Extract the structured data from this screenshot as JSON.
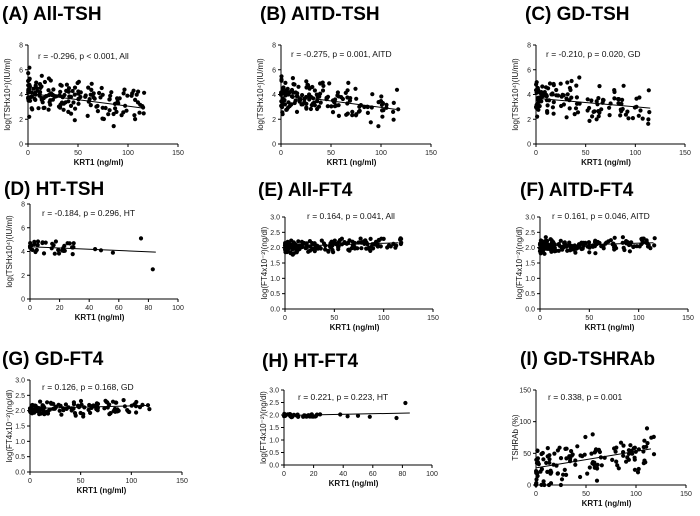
{
  "chart_data": [
    {
      "type": "scatter",
      "title": "(A) All-TSH",
      "annotation": "r = -0.296, p < 0.001, All",
      "xlabel": "KRT1 (ng/ml)",
      "ylabel": "log(TSHx10⁴)(IU/ml)",
      "xlim": [
        0,
        150
      ],
      "ylim": [
        0,
        8
      ],
      "xticks": [
        0,
        50,
        100,
        150
      ],
      "yticks": [
        0,
        2,
        4,
        6,
        8
      ],
      "regression": {
        "x": [
          0,
          115
        ],
        "y": [
          4.1,
          2.9
        ]
      },
      "seed": 11,
      "n": 170,
      "x_max": 118,
      "mean": 3.6,
      "spread": 1.1,
      "y_range": [
        0.6,
        6.3
      ]
    },
    {
      "type": "scatter",
      "title": "(B) AITD-TSH",
      "annotation": "r = -0.275, p = 0.001, AITD",
      "xlabel": "KRT1 (ng/ml)",
      "ylabel": "log(TSHx10⁴)(IU/ml)",
      "xlim": [
        0,
        150
      ],
      "ylim": [
        0,
        8
      ],
      "xticks": [
        0,
        50,
        100,
        150
      ],
      "yticks": [
        0,
        2,
        4,
        6,
        8
      ],
      "regression": {
        "x": [
          0,
          115
        ],
        "y": [
          4.0,
          2.8
        ]
      },
      "seed": 23,
      "n": 160,
      "x_max": 118,
      "mean": 3.5,
      "spread": 1.1,
      "y_range": [
        0.6,
        6.2
      ]
    },
    {
      "type": "scatter",
      "title": "(C) GD-TSH",
      "annotation": "r = -0.210, p = 0.020, GD",
      "xlabel": "KRT1 (ng/ml)",
      "ylabel": "log(TSHx10⁴)(IU/ml)",
      "xlim": [
        0,
        150
      ],
      "ylim": [
        0,
        8
      ],
      "xticks": [
        0,
        50,
        100,
        150
      ],
      "yticks": [
        0,
        2,
        4,
        6,
        8
      ],
      "regression": {
        "x": [
          0,
          115
        ],
        "y": [
          3.7,
          2.9
        ]
      },
      "seed": 37,
      "n": 130,
      "x_max": 118,
      "mean": 3.3,
      "spread": 1.1,
      "y_range": [
        0.6,
        5.8
      ]
    },
    {
      "type": "scatter",
      "title": "(D) HT-TSH",
      "annotation": "r = -0.184, p = 0.296, HT",
      "xlabel": "KRT1 (ng/ml)",
      "ylabel": "log(TSHx10⁴)(IU/ml)",
      "xlim": [
        0,
        100
      ],
      "ylim": [
        0,
        8
      ],
      "xticks": [
        0,
        20,
        40,
        60,
        80,
        100
      ],
      "yticks": [
        0,
        2,
        4,
        6,
        8
      ],
      "regression": {
        "x": [
          0,
          85
        ],
        "y": [
          4.4,
          3.95
        ]
      },
      "seed": 41,
      "n": 35,
      "x_max": 30,
      "mean": 4.4,
      "spread": 0.45,
      "y_range": [
        2.4,
        5.3
      ],
      "extra_points": [
        [
          44,
          4.2
        ],
        [
          48,
          4.1
        ],
        [
          56,
          3.9
        ],
        [
          75,
          5.1
        ],
        [
          83,
          2.5
        ]
      ]
    },
    {
      "type": "scatter",
      "title": "(E) All-FT4",
      "annotation": "r = 0.164, p = 0.041, All",
      "xlabel": "KRT1 (ng/ml)",
      "ylabel": "log(FT4x10⁻²)(ng/dl)",
      "xlim": [
        0,
        150
      ],
      "ylim": [
        0,
        3.0
      ],
      "xticks": [
        0,
        50,
        100,
        150
      ],
      "yticks": [
        "0.0",
        "0.5",
        "1.0",
        "1.5",
        "2.0",
        "2.5",
        "3.0"
      ],
      "regression": {
        "x": [
          0,
          115
        ],
        "y": [
          2.04,
          2.16
        ]
      },
      "seed": 53,
      "n": 165,
      "x_max": 118,
      "mean": 2.07,
      "spread": 0.17,
      "y_range": [
        1.3,
        2.95
      ]
    },
    {
      "type": "scatter",
      "title": "(F) AITD-FT4",
      "annotation": "r = 0.161,  p = 0.046, AITD",
      "xlabel": "KRT1 (ng/ml)",
      "ylabel": "log(FT4x10⁻²)(ng/dl)",
      "xlim": [
        0,
        150
      ],
      "ylim": [
        0,
        3.0
      ],
      "xticks": [
        0,
        50,
        100,
        150
      ],
      "yticks": [
        "0.0",
        "0.5",
        "1.0",
        "1.5",
        "2.0",
        "2.5",
        "3.0"
      ],
      "regression": {
        "x": [
          0,
          115
        ],
        "y": [
          2.05,
          2.16
        ]
      },
      "seed": 67,
      "n": 160,
      "x_max": 118,
      "mean": 2.08,
      "spread": 0.17,
      "y_range": [
        1.3,
        2.9
      ]
    },
    {
      "type": "scatter",
      "title": "(G) GD-FT4",
      "annotation": "r = 0.126, p = 0.168, GD",
      "xlabel": "KRT1 (ng/ml)",
      "ylabel": "log(FT4x10⁻²)(ng/dl)",
      "xlim": [
        0,
        150
      ],
      "ylim": [
        0,
        3.0
      ],
      "xticks": [
        0,
        50,
        100,
        150
      ],
      "yticks": [
        "0.0",
        "0.5",
        "1.0",
        "1.5",
        "2.0",
        "2.5",
        "3.0"
      ],
      "regression": {
        "x": [
          0,
          115
        ],
        "y": [
          2.07,
          2.17
        ]
      },
      "seed": 79,
      "n": 125,
      "x_max": 118,
      "mean": 2.1,
      "spread": 0.18,
      "y_range": [
        1.3,
        2.95
      ]
    },
    {
      "type": "scatter",
      "title": "(H) HT-FT4",
      "annotation": "r = 0.221,  p = 0.223, HT",
      "xlabel": "KRT1 (ng/ml)",
      "ylabel": "log(FT4x10⁻²)(ng/dl)",
      "xlim": [
        0,
        100
      ],
      "ylim": [
        0,
        3.0
      ],
      "xticks": [
        0,
        20,
        40,
        60,
        80,
        100
      ],
      "yticks": [
        "0.0",
        "0.5",
        "1.0",
        "1.5",
        "2.0",
        "2.5",
        "3.0"
      ],
      "regression": {
        "x": [
          0,
          85
        ],
        "y": [
          1.98,
          2.08
        ]
      },
      "seed": 89,
      "n": 35,
      "x_max": 25,
      "mean": 2.0,
      "spread": 0.07,
      "y_range": [
        1.85,
        2.15
      ],
      "extra_points": [
        [
          38,
          2.02
        ],
        [
          43,
          1.95
        ],
        [
          50,
          1.97
        ],
        [
          58,
          1.93
        ],
        [
          76,
          1.88
        ],
        [
          82,
          2.48
        ]
      ]
    },
    {
      "type": "scatter",
      "title": "(I) GD-TSHRAb",
      "annotation": "r = 0.338, p = 0.001",
      "xlabel": "KRT1 (ng/ml)",
      "ylabel": "TSHRAb (%)",
      "xlim": [
        0,
        150
      ],
      "ylim": [
        0,
        150
      ],
      "xticks": [
        0,
        50,
        100,
        150
      ],
      "yticks": [
        0,
        50,
        100,
        150
      ],
      "regression": {
        "x": [
          0,
          115
        ],
        "y": [
          27,
          57
        ]
      },
      "seed": 97,
      "n": 125,
      "x_max": 118,
      "mean": 38,
      "spread": 25,
      "y_range": [
        0,
        98
      ]
    }
  ]
}
